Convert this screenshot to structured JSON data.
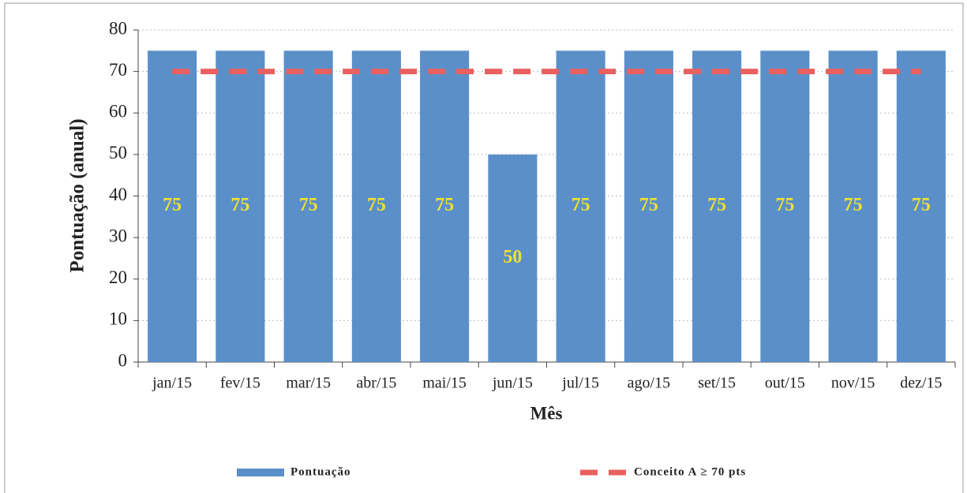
{
  "chart_data": {
    "type": "bar",
    "x_label": "Mês",
    "y_label": "Pontuação (anual)",
    "categories": [
      "jan/15",
      "fev/15",
      "mar/15",
      "abr/15",
      "mai/15",
      "jun/15",
      "jul/15",
      "ago/15",
      "set/15",
      "out/15",
      "nov/15",
      "dez/15"
    ],
    "series": [
      {
        "name": "Pontuação",
        "type": "bar",
        "color": "#5b8fc9",
        "values": [
          75,
          75,
          75,
          75,
          75,
          50,
          75,
          75,
          75,
          75,
          75,
          75
        ]
      },
      {
        "name": "Conceito A ≥ 70 pts",
        "type": "line",
        "color": "#e8605f",
        "values": [
          70,
          70,
          70,
          70,
          70,
          70,
          70,
          70,
          70,
          70,
          70,
          70
        ]
      }
    ],
    "ylim": [
      0,
      80
    ],
    "yticks": [
      0,
      10,
      20,
      30,
      40,
      50,
      60,
      70,
      80
    ],
    "grid": true,
    "legend": "bottom"
  }
}
